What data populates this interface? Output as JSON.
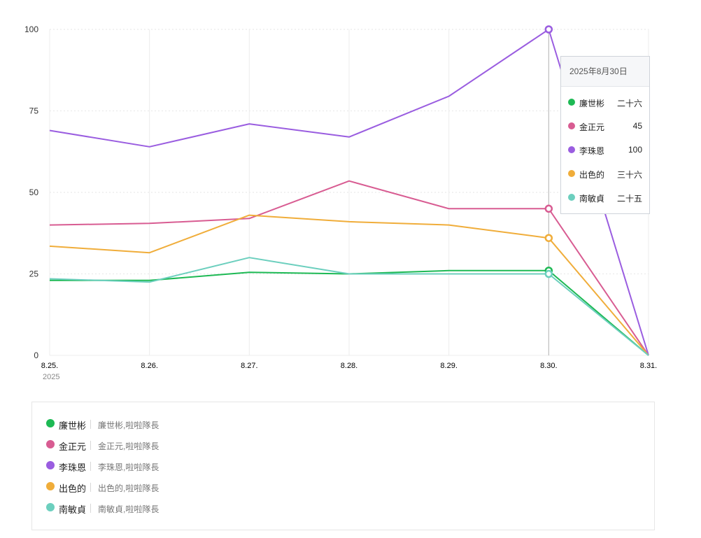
{
  "chart_data": {
    "type": "line",
    "categories": [
      "8.25.",
      "8.26.",
      "8.27.",
      "8.28.",
      "8.29.",
      "8.30.",
      "8.31."
    ],
    "x_sublabel_first": "2025",
    "yticks": [
      "100",
      "75",
      "50",
      "25",
      "0"
    ],
    "ylim": [
      0,
      100
    ],
    "grid": true,
    "highlight_index": 5,
    "series": [
      {
        "name": "廉世彬",
        "color": "#1db954",
        "values": [
          23,
          23,
          25.5,
          25,
          26,
          26,
          0
        ]
      },
      {
        "name": "金正元",
        "color": "#d85c92",
        "values": [
          40,
          40.5,
          42,
          53.5,
          45,
          45,
          0
        ]
      },
      {
        "name": "李珠恩",
        "color": "#9a5de0",
        "values": [
          69,
          64,
          71,
          67,
          79.5,
          100,
          0
        ]
      },
      {
        "name": "出色的",
        "color": "#f0ad3a",
        "values": [
          33.5,
          31.5,
          43,
          41,
          40,
          36,
          0
        ]
      },
      {
        "name": "南敏貞",
        "color": "#6ccfbe",
        "values": [
          23.5,
          22.5,
          30,
          25,
          25,
          25,
          0
        ]
      }
    ]
  },
  "tooltip": {
    "title": "2025年8月30日",
    "rows": [
      {
        "name": "廉世彬",
        "value": "二十六",
        "color": "#1db954"
      },
      {
        "name": "金正元",
        "value": "45",
        "color": "#d85c92"
      },
      {
        "name": "李珠恩",
        "value": "100",
        "color": "#9a5de0"
      },
      {
        "name": "出色的",
        "value": "三十六",
        "color": "#f0ad3a"
      },
      {
        "name": "南敏貞",
        "value": "二十五",
        "color": "#6ccfbe"
      }
    ]
  },
  "legend": {
    "items": [
      {
        "name": "廉世彬",
        "desc": "廉世彬,啦啦隊長",
        "color": "#1db954"
      },
      {
        "name": "金正元",
        "desc": "金正元,啦啦隊長",
        "color": "#d85c92"
      },
      {
        "name": "李珠恩",
        "desc": "李珠恩,啦啦隊長",
        "color": "#9a5de0"
      },
      {
        "name": "出色的",
        "desc": "出色的,啦啦隊長",
        "color": "#f0ad3a"
      },
      {
        "name": "南敏貞",
        "desc": "南敏貞,啦啦隊長",
        "color": "#6ccfbe"
      }
    ]
  }
}
